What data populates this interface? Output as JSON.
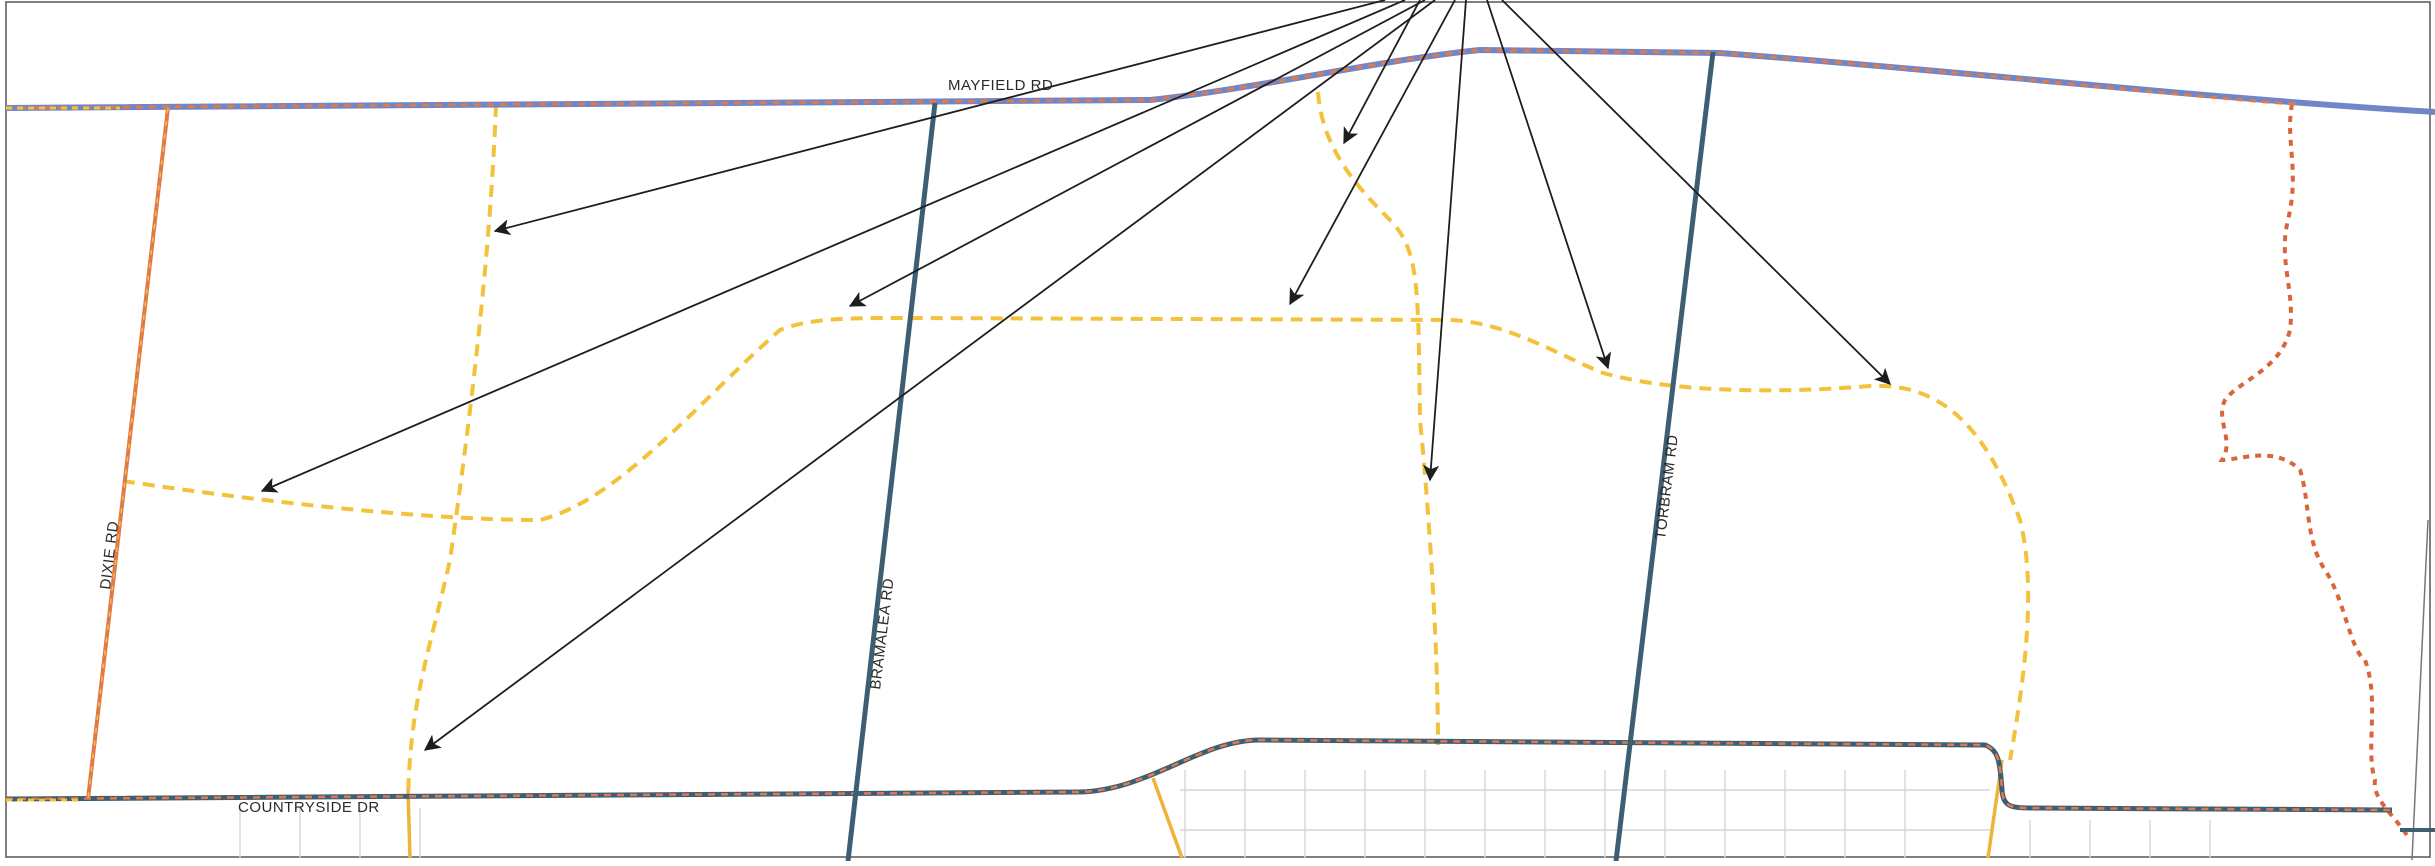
{
  "map": {
    "roads": {
      "mayfield": "MAYFIELD RD",
      "countryside": "COUNTRYSIDE DR",
      "dixie": "DIXIE RD",
      "bramalea": "BRAMALEA RD",
      "torbram": "TORBRAM RD"
    },
    "colors": {
      "arterial": "#3e5f73",
      "boundary_dash": "#e07a4a",
      "mayfield_base": "#6f86c9",
      "proposed_collector": "#f3c13a",
      "existing_collector": "#efb23a",
      "creek_boundary": "#d9653a",
      "arrow": "#1e1e1e",
      "local_streets": "#d8d8d8"
    }
  }
}
